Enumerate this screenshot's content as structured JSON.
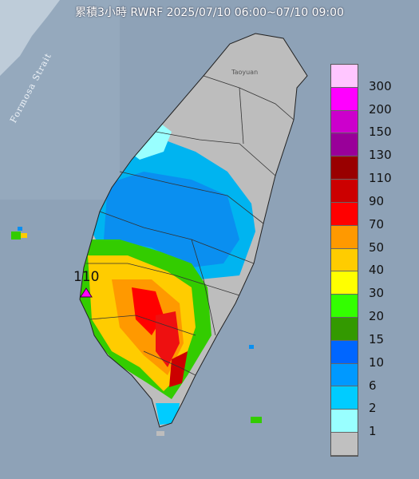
{
  "title": "累積3小時 RWRF 2025/07/10 06:00~07/10 09:00",
  "water_label": "Formosa Strait",
  "city_label": "Taoyuan",
  "max_value_label": "110",
  "legend": {
    "labels": [
      "300",
      "200",
      "150",
      "130",
      "110",
      "90",
      "70",
      "50",
      "40",
      "30",
      "20",
      "15",
      "10",
      "6",
      "2",
      "1"
    ],
    "colors": [
      "#ffc6ff",
      "#ff00ff",
      "#cc00cc",
      "#990099",
      "#990000",
      "#cc0000",
      "#ff0000",
      "#ff9900",
      "#ffcc00",
      "#ffff00",
      "#33ff00",
      "#339900",
      "#0066ff",
      "#0099ff",
      "#00ccff",
      "#99ffff",
      "#c0c0c0"
    ]
  }
}
